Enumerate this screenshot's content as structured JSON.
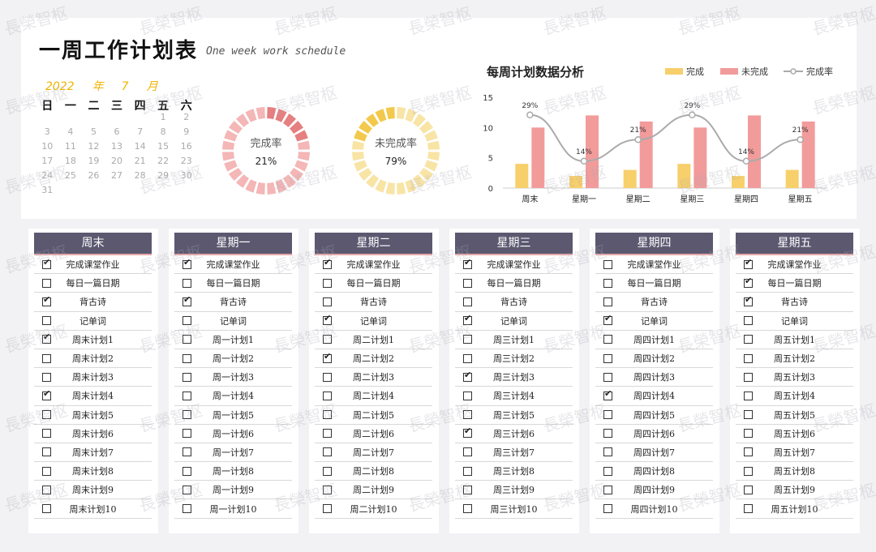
{
  "header": {
    "title": "一周工作计划表",
    "subtitle": "One week work schedule",
    "year": "2022",
    "year_unit": "年",
    "month": "7",
    "month_unit": "月"
  },
  "calendar": {
    "weekdays": [
      "日",
      "一",
      "二",
      "三",
      "四",
      "五",
      "六"
    ],
    "weeks": [
      [
        "",
        "",
        "",
        "",
        "",
        "1",
        "2"
      ],
      [
        "3",
        "4",
        "5",
        "6",
        "7",
        "8",
        "9"
      ],
      [
        "10",
        "11",
        "12",
        "13",
        "14",
        "15",
        "16"
      ],
      [
        "17",
        "18",
        "19",
        "20",
        "21",
        "22",
        "23"
      ],
      [
        "24",
        "25",
        "26",
        "27",
        "28",
        "29",
        "30"
      ],
      [
        "31",
        "",
        "",
        "",
        "",
        "",
        ""
      ]
    ]
  },
  "donuts": [
    {
      "label": "完成率",
      "value": "21%",
      "fraction": 0.21,
      "color_main": "#f4b6b6",
      "color_accent": "#e57f80"
    },
    {
      "label": "未完成率",
      "value": "79%",
      "fraction": 0.79,
      "color_main": "#f2c94c",
      "color_accent": "#f8e4a5"
    }
  ],
  "chart_title": "每周计划数据分析",
  "legend": {
    "done": "完成",
    "undone": "未完成",
    "rate": "完成率"
  },
  "colors": {
    "done": "#f7cf6b",
    "undone": "#f29b9b",
    "rate": "#aaaaaa",
    "header_bg": "#5b5870"
  },
  "chart_data": {
    "type": "bar",
    "title": "每周计划数据分析",
    "categories": [
      "周末",
      "星期一",
      "星期二",
      "星期三",
      "星期四",
      "星期五"
    ],
    "series": [
      {
        "name": "完成",
        "type": "bar",
        "values": [
          4,
          2,
          3,
          4,
          2,
          3
        ]
      },
      {
        "name": "未完成",
        "type": "bar",
        "values": [
          10,
          12,
          11,
          10,
          12,
          11
        ]
      },
      {
        "name": "完成率",
        "type": "line",
        "values": [
          0.29,
          0.14,
          0.21,
          0.29,
          0.14,
          0.21
        ],
        "labels": [
          "29%",
          "14%",
          "21%",
          "29%",
          "14%",
          "21%"
        ]
      }
    ],
    "yticks": [
      "0",
      "5",
      "10",
      "15"
    ],
    "ylim": [
      0,
      15
    ],
    "grid": false,
    "legend_position": "top-right"
  },
  "days": [
    {
      "name": "周末",
      "tasks": [
        {
          "label": "完成课堂作业",
          "checked": true
        },
        {
          "label": "每日一篇日期",
          "checked": false
        },
        {
          "label": "背古诗",
          "checked": true
        },
        {
          "label": "记单词",
          "checked": false
        },
        {
          "label": "周末计划1",
          "checked": true
        },
        {
          "label": "周末计划2",
          "checked": false
        },
        {
          "label": "周末计划3",
          "checked": false
        },
        {
          "label": "周末计划4",
          "checked": true
        },
        {
          "label": "周末计划5",
          "checked": false
        },
        {
          "label": "周末计划6",
          "checked": false
        },
        {
          "label": "周末计划7",
          "checked": false
        },
        {
          "label": "周末计划8",
          "checked": false
        },
        {
          "label": "周末计划9",
          "checked": false
        },
        {
          "label": "周末计划10",
          "checked": false
        }
      ]
    },
    {
      "name": "星期一",
      "tasks": [
        {
          "label": "完成课堂作业",
          "checked": true
        },
        {
          "label": "每日一篇日期",
          "checked": false
        },
        {
          "label": "背古诗",
          "checked": true
        },
        {
          "label": "记单词",
          "checked": false
        },
        {
          "label": "周一计划1",
          "checked": false
        },
        {
          "label": "周一计划2",
          "checked": false
        },
        {
          "label": "周一计划3",
          "checked": false
        },
        {
          "label": "周一计划4",
          "checked": false
        },
        {
          "label": "周一计划5",
          "checked": false
        },
        {
          "label": "周一计划6",
          "checked": false
        },
        {
          "label": "周一计划7",
          "checked": false
        },
        {
          "label": "周一计划8",
          "checked": false
        },
        {
          "label": "周一计划9",
          "checked": false
        },
        {
          "label": "周一计划10",
          "checked": false
        }
      ]
    },
    {
      "name": "星期二",
      "tasks": [
        {
          "label": "完成课堂作业",
          "checked": true
        },
        {
          "label": "每日一篇日期",
          "checked": false
        },
        {
          "label": "背古诗",
          "checked": false
        },
        {
          "label": "记单词",
          "checked": true
        },
        {
          "label": "周二计划1",
          "checked": false
        },
        {
          "label": "周二计划2",
          "checked": true
        },
        {
          "label": "周二计划3",
          "checked": false
        },
        {
          "label": "周二计划4",
          "checked": false
        },
        {
          "label": "周二计划5",
          "checked": false
        },
        {
          "label": "周二计划6",
          "checked": false
        },
        {
          "label": "周二计划7",
          "checked": false
        },
        {
          "label": "周二计划8",
          "checked": false
        },
        {
          "label": "周二计划9",
          "checked": false
        },
        {
          "label": "周二计划10",
          "checked": false
        }
      ]
    },
    {
      "name": "星期三",
      "tasks": [
        {
          "label": "完成课堂作业",
          "checked": true
        },
        {
          "label": "每日一篇日期",
          "checked": false
        },
        {
          "label": "背古诗",
          "checked": false
        },
        {
          "label": "记单词",
          "checked": true
        },
        {
          "label": "周三计划1",
          "checked": false
        },
        {
          "label": "周三计划2",
          "checked": false
        },
        {
          "label": "周三计划3",
          "checked": true
        },
        {
          "label": "周三计划4",
          "checked": false
        },
        {
          "label": "周三计划5",
          "checked": false
        },
        {
          "label": "周三计划6",
          "checked": true
        },
        {
          "label": "周三计划7",
          "checked": false
        },
        {
          "label": "周三计划8",
          "checked": false
        },
        {
          "label": "周三计划9",
          "checked": false
        },
        {
          "label": "周三计划10",
          "checked": false
        }
      ]
    },
    {
      "name": "星期四",
      "tasks": [
        {
          "label": "完成课堂作业",
          "checked": false
        },
        {
          "label": "每日一篇日期",
          "checked": false
        },
        {
          "label": "背古诗",
          "checked": false
        },
        {
          "label": "记单词",
          "checked": true
        },
        {
          "label": "周四计划1",
          "checked": false
        },
        {
          "label": "周四计划2",
          "checked": false
        },
        {
          "label": "周四计划3",
          "checked": false
        },
        {
          "label": "周四计划4",
          "checked": true
        },
        {
          "label": "周四计划5",
          "checked": false
        },
        {
          "label": "周四计划6",
          "checked": false
        },
        {
          "label": "周四计划7",
          "checked": false
        },
        {
          "label": "周四计划8",
          "checked": false
        },
        {
          "label": "周四计划9",
          "checked": false
        },
        {
          "label": "周四计划10",
          "checked": false
        }
      ]
    },
    {
      "name": "星期五",
      "tasks": [
        {
          "label": "完成课堂作业",
          "checked": true
        },
        {
          "label": "每日一篇日期",
          "checked": true
        },
        {
          "label": "背古诗",
          "checked": true
        },
        {
          "label": "记单词",
          "checked": false
        },
        {
          "label": "周五计划1",
          "checked": false
        },
        {
          "label": "周五计划2",
          "checked": false
        },
        {
          "label": "周五计划3",
          "checked": false
        },
        {
          "label": "周五计划4",
          "checked": false
        },
        {
          "label": "周五计划5",
          "checked": false
        },
        {
          "label": "周五计划6",
          "checked": false
        },
        {
          "label": "周五计划7",
          "checked": false
        },
        {
          "label": "周五计划8",
          "checked": false
        },
        {
          "label": "周五计划9",
          "checked": false
        },
        {
          "label": "周五计划10",
          "checked": false
        }
      ]
    }
  ],
  "watermark": "長榮智枢"
}
